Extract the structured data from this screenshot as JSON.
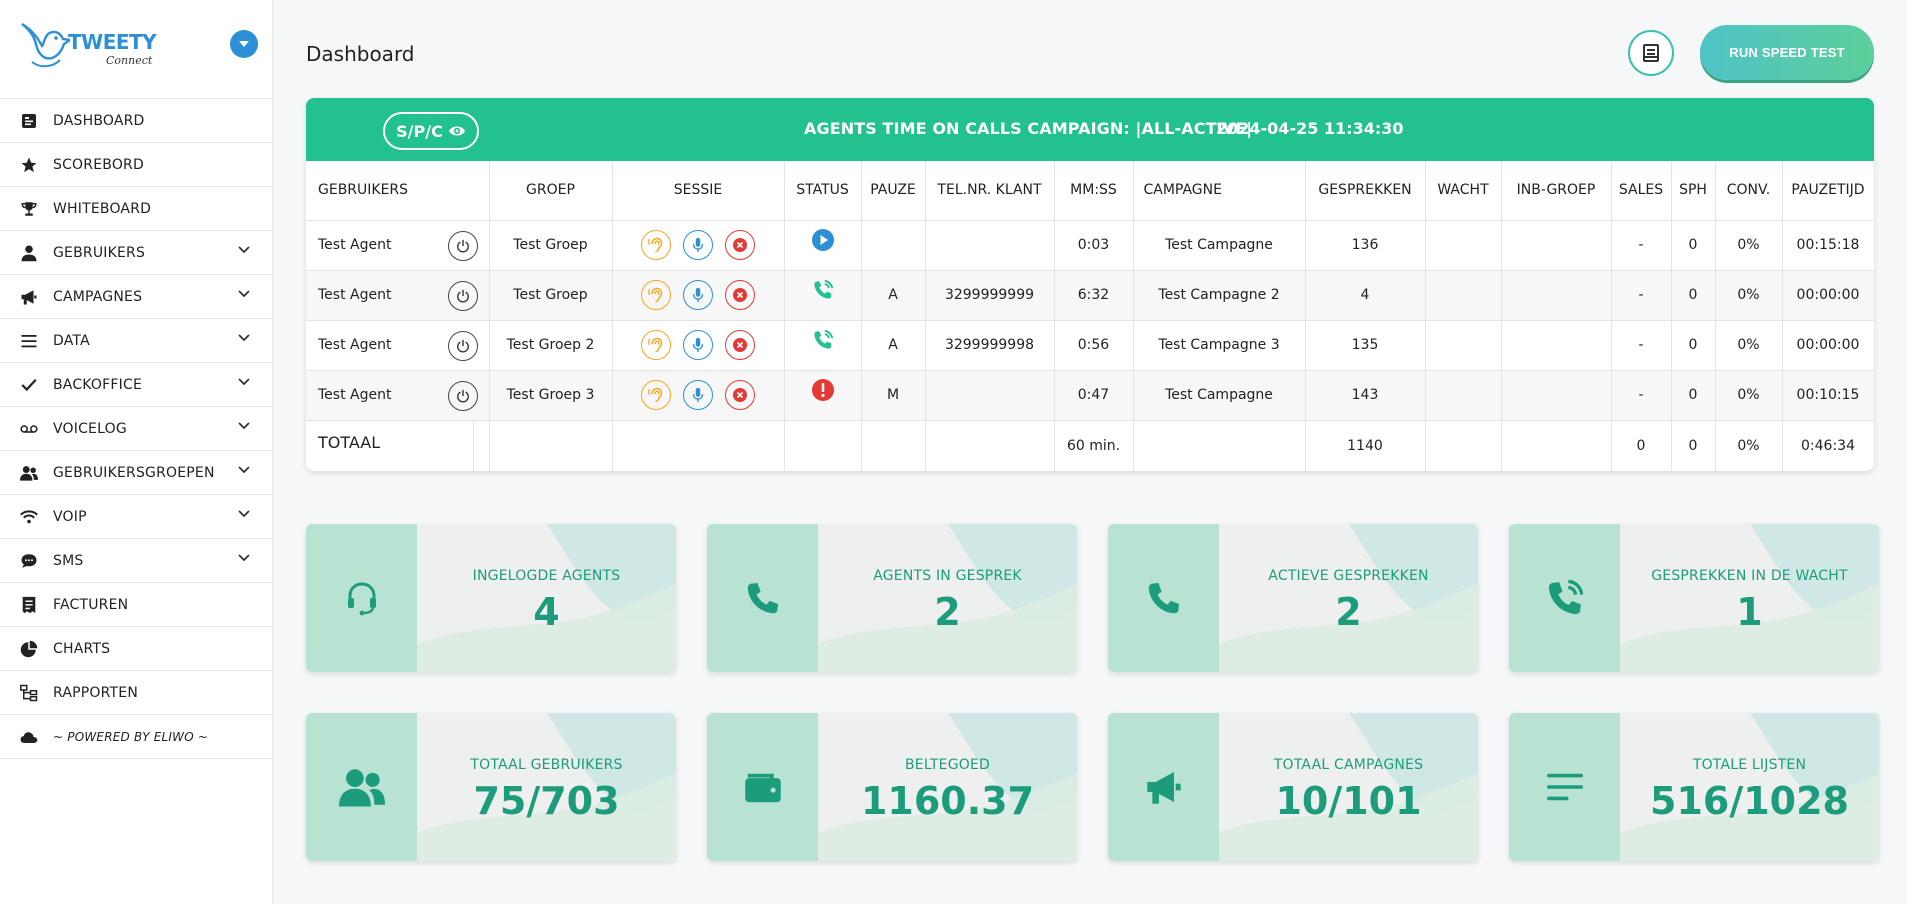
{
  "brand": {
    "name": "TWEETY",
    "subtitle": "Connect"
  },
  "sidebar": {
    "items": [
      {
        "label": "DASHBOARD",
        "icon": "dashboard-icon",
        "expandable": false
      },
      {
        "label": "SCOREBORD",
        "icon": "star-icon",
        "expandable": false
      },
      {
        "label": "WHITEBOARD",
        "icon": "trophy-icon",
        "expandable": false
      },
      {
        "label": "GEBRUIKERS",
        "icon": "user-icon",
        "expandable": true
      },
      {
        "label": "CAMPAGNES",
        "icon": "megaphone-icon",
        "expandable": true
      },
      {
        "label": "DATA",
        "icon": "list-icon",
        "expandable": true
      },
      {
        "label": "BACKOFFICE",
        "icon": "check-icon",
        "expandable": true
      },
      {
        "label": "VOICELOG",
        "icon": "voicemail-icon",
        "expandable": true
      },
      {
        "label": "GEBRUIKERSGROEPEN",
        "icon": "users-icon",
        "expandable": true
      },
      {
        "label": "VOIP",
        "icon": "wifi-icon",
        "expandable": true
      },
      {
        "label": "SMS",
        "icon": "chat-icon",
        "expandable": true
      },
      {
        "label": "FACTUREN",
        "icon": "invoice-icon",
        "expandable": false
      },
      {
        "label": "CHARTS",
        "icon": "pie-chart-icon",
        "expandable": false
      },
      {
        "label": "RAPPORTEN",
        "icon": "sitemap-icon",
        "expandable": false
      },
      {
        "label": "~ POWERED BY ELIWO ~",
        "icon": "cloud-icon",
        "expandable": false
      }
    ]
  },
  "header": {
    "title": "Dashboard",
    "speed_test_label": "RUN SPEED TEST"
  },
  "panel": {
    "spc_label": "S/P/C",
    "campaign_title": "AGENTS TIME ON CALLS CAMPAIGN: |ALL-ACTIVE|",
    "timestamp": "2024-04-25 11:34:30"
  },
  "table": {
    "columns": [
      "GEBRUIKERS",
      "GROEP",
      "SESSIE",
      "STATUS",
      "PAUZE",
      "TEL.NR. KLANT",
      "MM:SS",
      "CAMPAGNE",
      "GESPREKKEN",
      "WACHT",
      "INB-GROEP",
      "SALES",
      "SPH",
      "CONV.",
      "PAUZETIJD"
    ],
    "rows": [
      {
        "user": "Test Agent",
        "group": "Test Groep",
        "status": "play-icon",
        "pause": "",
        "phone": "",
        "mmss": "0:03",
        "campaign": "Test Campagne",
        "calls": "136",
        "wait": "",
        "inb": "",
        "sales": "-",
        "sph": "0",
        "conv": "0%",
        "pausetime": "00:15:18"
      },
      {
        "user": "Test Agent",
        "group": "Test Groep",
        "status": "phone-ringing-icon",
        "pause": "A",
        "phone": "3299999999",
        "mmss": "6:32",
        "campaign": "Test Campagne 2",
        "calls": "4",
        "wait": "",
        "inb": "",
        "sales": "-",
        "sph": "0",
        "conv": "0%",
        "pausetime": "00:00:00"
      },
      {
        "user": "Test Agent",
        "group": "Test Groep 2",
        "status": "phone-ringing-icon",
        "pause": "A",
        "phone": "3299999998",
        "mmss": "0:56",
        "campaign": "Test Campagne 3",
        "calls": "135",
        "wait": "",
        "inb": "",
        "sales": "-",
        "sph": "0",
        "conv": "0%",
        "pausetime": "00:00:00"
      },
      {
        "user": "Test Agent",
        "group": "Test Groep 3",
        "status": "alert-icon",
        "pause": "M",
        "phone": "",
        "mmss": "0:47",
        "campaign": "Test Campagne",
        "calls": "143",
        "wait": "",
        "inb": "",
        "sales": "-",
        "sph": "0",
        "conv": "0%",
        "pausetime": "00:10:15"
      }
    ],
    "total": {
      "label": "TOTAAL",
      "mmss": "60 min.",
      "calls": "1140",
      "sales": "0",
      "sph": "0",
      "conv": "0%",
      "pausetime": "0:46:34"
    }
  },
  "cards": [
    {
      "label": "INGELOGDE AGENTS",
      "value": "4",
      "icon": "headset-icon"
    },
    {
      "label": "AGENTS IN GESPREK",
      "value": "2",
      "icon": "phone-icon"
    },
    {
      "label": "ACTIEVE GESPREKKEN",
      "value": "2",
      "icon": "phone-icon"
    },
    {
      "label": "GESPREKKEN IN DE WACHT",
      "value": "1",
      "icon": "phone-wait-icon"
    },
    {
      "label": "TOTAAL GEBRUIKERS",
      "value": "75/703",
      "icon": "users-icon"
    },
    {
      "label": "BELTEGOED",
      "value": "1160.37",
      "icon": "wallet-icon"
    },
    {
      "label": "TOTAAL CAMPAGNES",
      "value": "10/101",
      "icon": "megaphone-icon"
    },
    {
      "label": "TOTALE LIJSTEN",
      "value": "516/1028",
      "icon": "lines-icon"
    }
  ],
  "colors": {
    "accent": "#22c18f",
    "blue": "#2d8fd5",
    "card_text": "#1d9c7c"
  }
}
